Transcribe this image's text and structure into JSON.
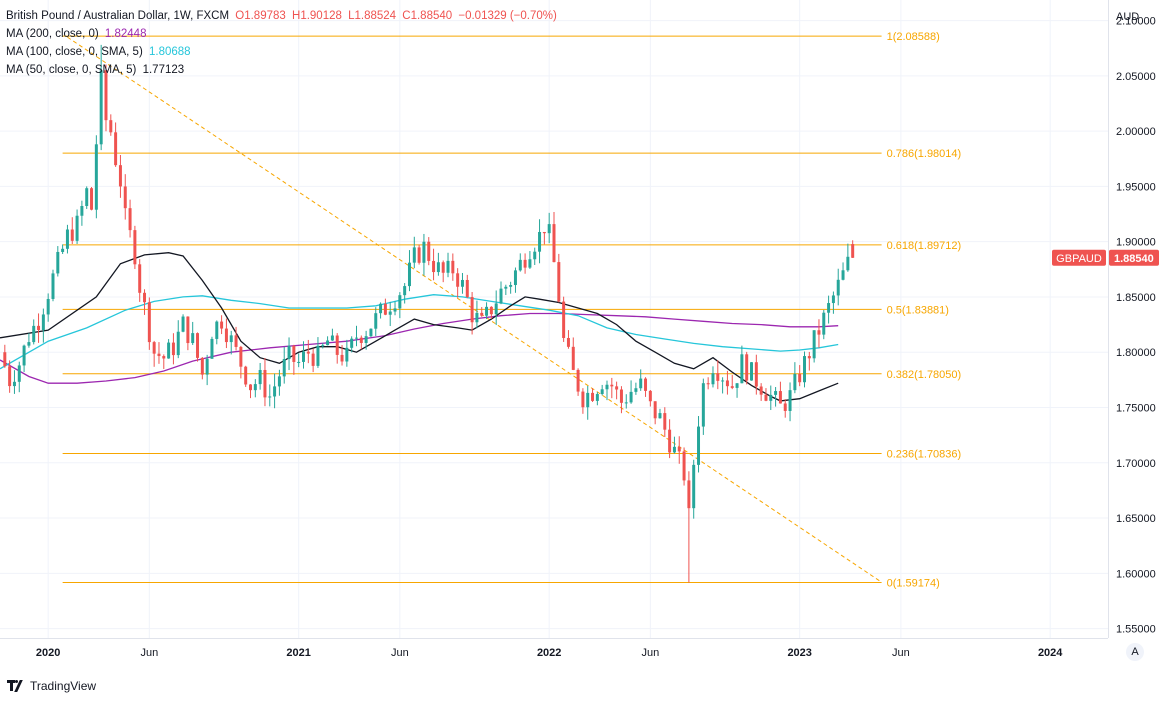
{
  "legend": {
    "symbol": "British Pound / Australian Dollar, 1W, FXCM",
    "o_label": "O",
    "o": "1.89783",
    "h_label": "H",
    "h": "1.90128",
    "l_label": "L",
    "l": "1.88524",
    "c_label": "C",
    "c": "1.88540",
    "change": "−0.01329 (−0.70%)",
    "ma200_label": "MA (200, close, 0)",
    "ma200_value": "1.82448",
    "ma100_label": "MA (100, close, 0, SMA, 5)",
    "ma100_value": "1.80688",
    "ma50_label": "MA (50, close, 0, SMA, 5)",
    "ma50_value": "1.77123"
  },
  "colors": {
    "up": "#26a69a",
    "down": "#ef5350",
    "fib": "#f7a600",
    "ma200": "#9c27b0",
    "ma100": "#26c6da",
    "ma50": "#131722",
    "grid": "#f0f3fa",
    "axis_text": "#131722"
  },
  "footer": {
    "brand": "TradingView"
  },
  "auto_label": "A",
  "chart_data": {
    "type": "candlestick",
    "title": "British Pound / Australian Dollar, 1W, FXCM",
    "currency": "AUD",
    "ylim": [
      1.5415,
      2.1186
    ],
    "y_ticks": [
      "2.10000",
      "2.05000",
      "2.00000",
      "1.95000",
      "1.90000",
      "1.85000",
      "1.80000",
      "1.75000",
      "1.70000",
      "1.65000",
      "1.60000",
      "1.55000"
    ],
    "y_tick_values": [
      2.1,
      2.05,
      2.0,
      1.95,
      1.9,
      1.85,
      1.8,
      1.75,
      1.7,
      1.65,
      1.6,
      1.55
    ],
    "x_range_weeks": [
      -10,
      220
    ],
    "x_ticks": [
      {
        "label": "2020",
        "week": 0
      },
      {
        "label": "Jun",
        "week": 21
      },
      {
        "label": "2021",
        "week": 52
      },
      {
        "label": "Jun",
        "week": 73
      },
      {
        "label": "2022",
        "week": 104
      },
      {
        "label": "Jun",
        "week": 125
      },
      {
        "label": "2023",
        "week": 156
      },
      {
        "label": "Jun",
        "week": 177
      },
      {
        "label": "2024",
        "week": 208
      }
    ],
    "last_price": {
      "symbol": "GBPAUD",
      "value": "1.88540",
      "price": 1.8854
    },
    "fib_levels": [
      {
        "label": "1(2.08588)",
        "price": 2.08588
      },
      {
        "label": "0.786(1.98014)",
        "price": 1.98014
      },
      {
        "label": "0.618(1.89712)",
        "price": 1.89712
      },
      {
        "label": "0.5(1.83881)",
        "price": 1.83881
      },
      {
        "label": "0.382(1.78050)",
        "price": 1.7805
      },
      {
        "label": "0.236(1.70836)",
        "price": 1.70836
      },
      {
        "label": "0(1.59174)",
        "price": 1.59174
      }
    ],
    "fib_range_weeks": [
      3,
      173
    ],
    "trend_line": {
      "from": {
        "week": 4,
        "price": 2.085
      },
      "to": {
        "week": 173,
        "price": 1.592
      }
    },
    "anchors": [
      [
        -10,
        1.8
      ],
      [
        -8,
        1.775
      ],
      [
        -6,
        1.79
      ],
      [
        -4,
        1.815
      ],
      [
        -2,
        1.83
      ],
      [
        0,
        1.855
      ],
      [
        2,
        1.88
      ],
      [
        4,
        1.905
      ],
      [
        6,
        1.915
      ],
      [
        8,
        1.945
      ],
      [
        9,
        1.93
      ],
      [
        10,
        1.99
      ],
      [
        11,
        2.045
      ],
      [
        12,
        2.01
      ],
      [
        13,
        2.0
      ],
      [
        14,
        1.975
      ],
      [
        15,
        1.955
      ],
      [
        16,
        1.92
      ],
      [
        17,
        1.905
      ],
      [
        18,
        1.89
      ],
      [
        19,
        1.86
      ],
      [
        20,
        1.84
      ],
      [
        21,
        1.82
      ],
      [
        22,
        1.8
      ],
      [
        24,
        1.795
      ],
      [
        26,
        1.805
      ],
      [
        28,
        1.825
      ],
      [
        30,
        1.81
      ],
      [
        32,
        1.78
      ],
      [
        34,
        1.82
      ],
      [
        36,
        1.83
      ],
      [
        38,
        1.81
      ],
      [
        40,
        1.79
      ],
      [
        42,
        1.77
      ],
      [
        44,
        1.775
      ],
      [
        46,
        1.76
      ],
      [
        48,
        1.78
      ],
      [
        50,
        1.795
      ],
      [
        52,
        1.79
      ],
      [
        54,
        1.8
      ],
      [
        56,
        1.795
      ],
      [
        58,
        1.81
      ],
      [
        60,
        1.8
      ],
      [
        62,
        1.795
      ],
      [
        64,
        1.815
      ],
      [
        66,
        1.82
      ],
      [
        68,
        1.83
      ],
      [
        70,
        1.84
      ],
      [
        72,
        1.85
      ],
      [
        74,
        1.86
      ],
      [
        76,
        1.885
      ],
      [
        78,
        1.895
      ],
      [
        80,
        1.88
      ],
      [
        82,
        1.87
      ],
      [
        84,
        1.875
      ],
      [
        86,
        1.86
      ],
      [
        88,
        1.835
      ],
      [
        90,
        1.825
      ],
      [
        92,
        1.84
      ],
      [
        94,
        1.855
      ],
      [
        96,
        1.865
      ],
      [
        98,
        1.88
      ],
      [
        100,
        1.895
      ],
      [
        102,
        1.905
      ],
      [
        103,
        1.915
      ],
      [
        104,
        1.905
      ],
      [
        105,
        1.88
      ],
      [
        106,
        1.85
      ],
      [
        107,
        1.81
      ],
      [
        109,
        1.78
      ],
      [
        111,
        1.76
      ],
      [
        113,
        1.765
      ],
      [
        115,
        1.775
      ],
      [
        117,
        1.77
      ],
      [
        119,
        1.755
      ],
      [
        121,
        1.765
      ],
      [
        123,
        1.77
      ],
      [
        125,
        1.75
      ],
      [
        127,
        1.74
      ],
      [
        129,
        1.72
      ],
      [
        131,
        1.7
      ],
      [
        132,
        1.69
      ],
      [
        133,
        1.65
      ],
      [
        134,
        1.7
      ],
      [
        135,
        1.74
      ],
      [
        136,
        1.77
      ],
      [
        138,
        1.79
      ],
      [
        140,
        1.78
      ],
      [
        142,
        1.77
      ],
      [
        144,
        1.79
      ],
      [
        146,
        1.78
      ],
      [
        148,
        1.77
      ],
      [
        150,
        1.76
      ],
      [
        152,
        1.75
      ],
      [
        154,
        1.76
      ],
      [
        156,
        1.78
      ],
      [
        158,
        1.8
      ],
      [
        160,
        1.82
      ],
      [
        162,
        1.84
      ],
      [
        164,
        1.86
      ],
      [
        166,
        1.88
      ],
      [
        167,
        1.886
      ]
    ],
    "ma50_points": [
      [
        -10,
        1.813
      ],
      [
        0,
        1.82
      ],
      [
        10,
        1.85
      ],
      [
        15,
        1.88
      ],
      [
        20,
        1.888
      ],
      [
        25,
        1.89
      ],
      [
        28,
        1.887
      ],
      [
        32,
        1.865
      ],
      [
        36,
        1.84
      ],
      [
        40,
        1.81
      ],
      [
        44,
        1.795
      ],
      [
        48,
        1.79
      ],
      [
        52,
        1.8
      ],
      [
        56,
        1.805
      ],
      [
        60,
        1.805
      ],
      [
        64,
        1.8
      ],
      [
        68,
        1.81
      ],
      [
        72,
        1.82
      ],
      [
        76,
        1.83
      ],
      [
        80,
        1.825
      ],
      [
        85,
        1.822
      ],
      [
        88,
        1.82
      ],
      [
        92,
        1.83
      ],
      [
        96,
        1.842
      ],
      [
        99,
        1.85
      ],
      [
        102,
        1.848
      ],
      [
        106,
        1.845
      ],
      [
        110,
        1.84
      ],
      [
        114,
        1.835
      ],
      [
        118,
        1.825
      ],
      [
        122,
        1.81
      ],
      [
        126,
        1.8
      ],
      [
        130,
        1.79
      ],
      [
        134,
        1.785
      ],
      [
        138,
        1.795
      ],
      [
        142,
        1.782
      ],
      [
        146,
        1.77
      ],
      [
        150,
        1.76
      ],
      [
        152,
        1.756
      ],
      [
        156,
        1.758
      ],
      [
        160,
        1.765
      ],
      [
        164,
        1.772
      ]
    ],
    "ma100_points": [
      [
        -10,
        1.785
      ],
      [
        0,
        1.81
      ],
      [
        8,
        1.822
      ],
      [
        16,
        1.838
      ],
      [
        22,
        1.846
      ],
      [
        28,
        1.85
      ],
      [
        32,
        1.851
      ],
      [
        38,
        1.847
      ],
      [
        44,
        1.844
      ],
      [
        50,
        1.84
      ],
      [
        56,
        1.84
      ],
      [
        62,
        1.84
      ],
      [
        68,
        1.842
      ],
      [
        74,
        1.848
      ],
      [
        80,
        1.852
      ],
      [
        86,
        1.85
      ],
      [
        92,
        1.846
      ],
      [
        98,
        1.842
      ],
      [
        104,
        1.838
      ],
      [
        110,
        1.833
      ],
      [
        116,
        1.822
      ],
      [
        122,
        1.816
      ],
      [
        128,
        1.812
      ],
      [
        134,
        1.808
      ],
      [
        140,
        1.805
      ],
      [
        146,
        1.803
      ],
      [
        152,
        1.801
      ],
      [
        156,
        1.802
      ],
      [
        160,
        1.804
      ],
      [
        164,
        1.807
      ]
    ],
    "ma200_points": [
      [
        -10,
        1.793
      ],
      [
        -4,
        1.778
      ],
      [
        0,
        1.772
      ],
      [
        6,
        1.772
      ],
      [
        12,
        1.774
      ],
      [
        18,
        1.777
      ],
      [
        24,
        1.783
      ],
      [
        30,
        1.792
      ],
      [
        38,
        1.8
      ],
      [
        46,
        1.804
      ],
      [
        54,
        1.807
      ],
      [
        62,
        1.81
      ],
      [
        70,
        1.815
      ],
      [
        76,
        1.821
      ],
      [
        82,
        1.826
      ],
      [
        88,
        1.83
      ],
      [
        94,
        1.833
      ],
      [
        100,
        1.835
      ],
      [
        106,
        1.835
      ],
      [
        112,
        1.834
      ],
      [
        118,
        1.833
      ],
      [
        124,
        1.832
      ],
      [
        130,
        1.83
      ],
      [
        136,
        1.828
      ],
      [
        142,
        1.826
      ],
      [
        148,
        1.825
      ],
      [
        154,
        1.823
      ],
      [
        160,
        1.823
      ],
      [
        164,
        1.824
      ]
    ]
  }
}
